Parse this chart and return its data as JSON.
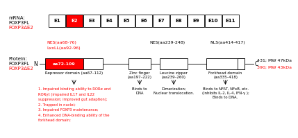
{
  "exons": [
    "E1",
    "E2",
    "E3",
    "E4",
    "E5",
    "E6",
    "E7",
    "E8",
    "E9",
    "E10",
    "E11"
  ],
  "red_color": "#FF0000",
  "black_color": "#000000",
  "bg_color": "#FFFFFF",
  "nes1_label": "NES(aa68-76)",
  "lxxll_label": "LxxLL(aa92-96)",
  "nes2_label": "NES(aa239-248)",
  "nls_label": "NLS(aa414-417)",
  "rep_label": "Repressor domain (aa67–112)",
  "zf_label": "Zinc finger\n(aa197–222)",
  "lz_label": "Leucine zipper\n(aa239–260)",
  "fh_label": "Forkhead domain\n(aa335–418)",
  "red_inner_label": "aa72-109",
  "annotations_red": [
    "1. Impaired binding ability to RORα and",
    "RORγt (impaired IL17 and IL22",
    "suppression; improved gut adaption);",
    "2. Trapped in nuclei;",
    "3. Impaired FOXP3 maintenance;",
    "4. Enhanced DNA-binding ability of the",
    "forkhead domain;"
  ],
  "annot_zf": "Binds to\nDNA",
  "annot_lz": "Dimerization;\nNuclear translocation.",
  "annot_fh": "Binds to NFAT, NFκB, etc.\n(inhibits IL-2, IL-4, IFN-γ );\nBinds to DNA.",
  "right_label_black": "431; MW 47kDa",
  "right_label_red": "390; MW 43kDa",
  "mrna_top_labels": [
    "mRNA:",
    "FOXP3FL"
  ],
  "mrna_red_label": "FOXP3ΔE2",
  "prot_top_labels": [
    "Protein:",
    "FOXP3FL"
  ],
  "prot_red_label": "FOXP3ΔE2"
}
